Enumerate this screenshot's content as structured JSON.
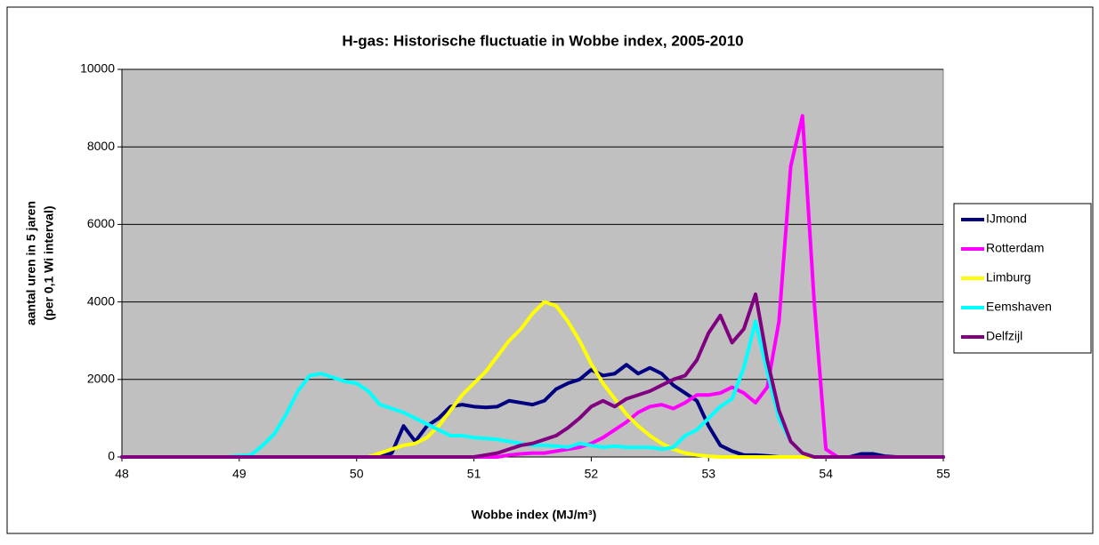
{
  "chart_data": {
    "type": "line",
    "title": "H-gas: Historische fluctuatie in Wobbe index, 2005-2010",
    "xlabel": "Wobbe index (MJ/m³)",
    "ylabel": [
      "aantal uren in 5 jaren",
      "(per 0,1 Wi interval)"
    ],
    "x": [
      48,
      48.1,
      48.2,
      48.3,
      48.4,
      48.5,
      48.6,
      48.7,
      48.8,
      48.9,
      49,
      49.1,
      49.2,
      49.3,
      49.4,
      49.5,
      49.6,
      49.7,
      49.8,
      49.9,
      50,
      50.1,
      50.2,
      50.3,
      50.4,
      50.5,
      50.6,
      50.7,
      50.8,
      50.9,
      51,
      51.1,
      51.2,
      51.3,
      51.4,
      51.5,
      51.6,
      51.7,
      51.8,
      51.9,
      52,
      52.1,
      52.2,
      52.3,
      52.4,
      52.5,
      52.6,
      52.7,
      52.8,
      52.9,
      53,
      53.1,
      53.2,
      53.3,
      53.4,
      53.5,
      53.6,
      53.7,
      53.8,
      53.9,
      54,
      54.1,
      54.2,
      54.3,
      54.4,
      54.5,
      54.6,
      54.7,
      54.8,
      54.9,
      55
    ],
    "series": [
      {
        "name": "IJmond",
        "color": "#000080",
        "values": [
          0,
          0,
          0,
          0,
          0,
          0,
          0,
          0,
          0,
          0,
          0,
          0,
          0,
          0,
          0,
          0,
          0,
          0,
          0,
          0,
          0,
          0,
          0,
          100,
          800,
          400,
          800,
          1000,
          1300,
          1350,
          1300,
          1280,
          1300,
          1450,
          1400,
          1350,
          1450,
          1750,
          1900,
          2000,
          2250,
          2100,
          2150,
          2380,
          2150,
          2300,
          2150,
          1850,
          1650,
          1450,
          800,
          300,
          150,
          50,
          50,
          30,
          0,
          0,
          0,
          0,
          0,
          0,
          0,
          80,
          80,
          20,
          0,
          0,
          0,
          0,
          0
        ]
      },
      {
        "name": "Rotterdam",
        "color": "#ff00ff",
        "values": [
          0,
          0,
          0,
          0,
          0,
          0,
          0,
          0,
          0,
          0,
          0,
          0,
          0,
          0,
          0,
          0,
          0,
          0,
          0,
          0,
          0,
          0,
          0,
          0,
          0,
          0,
          0,
          0,
          0,
          0,
          0,
          0,
          0,
          50,
          80,
          100,
          100,
          150,
          200,
          250,
          350,
          500,
          700,
          900,
          1150,
          1300,
          1350,
          1250,
          1400,
          1600,
          1600,
          1650,
          1800,
          1650,
          1400,
          1800,
          3500,
          7500,
          8800,
          4000,
          200,
          0,
          0,
          0,
          0,
          0,
          0,
          0,
          0,
          0,
          0
        ]
      },
      {
        "name": "Limburg",
        "color": "#ffff00",
        "values": [
          0,
          0,
          0,
          0,
          0,
          0,
          0,
          0,
          0,
          0,
          0,
          0,
          0,
          0,
          0,
          0,
          0,
          0,
          0,
          0,
          0,
          0,
          100,
          200,
          300,
          350,
          500,
          800,
          1200,
          1600,
          1900,
          2200,
          2600,
          3000,
          3300,
          3700,
          4000,
          3900,
          3500,
          3000,
          2400,
          1900,
          1500,
          1100,
          800,
          550,
          350,
          200,
          100,
          50,
          20,
          0,
          0,
          0,
          0,
          0,
          0,
          0,
          0,
          0,
          0,
          0,
          0,
          0,
          0,
          0,
          0,
          0,
          0,
          0,
          0
        ]
      },
      {
        "name": "Eemshaven",
        "color": "#00ffff",
        "values": [
          0,
          0,
          0,
          0,
          0,
          0,
          0,
          0,
          0,
          0,
          30,
          50,
          300,
          600,
          1100,
          1700,
          2100,
          2150,
          2050,
          1950,
          1900,
          1700,
          1350,
          1250,
          1150,
          1000,
          850,
          700,
          550,
          550,
          500,
          480,
          450,
          400,
          350,
          300,
          300,
          280,
          250,
          350,
          300,
          250,
          280,
          250,
          250,
          250,
          200,
          250,
          550,
          700,
          1000,
          1300,
          1500,
          2300,
          3500,
          2200,
          1000,
          400,
          100,
          0,
          0,
          0,
          0,
          0,
          0,
          0,
          0,
          0,
          0,
          0,
          0
        ]
      },
      {
        "name": "Delfzijl",
        "color": "#800080",
        "values": [
          0,
          0,
          0,
          0,
          0,
          0,
          0,
          0,
          0,
          0,
          0,
          0,
          0,
          0,
          0,
          0,
          0,
          0,
          0,
          0,
          0,
          0,
          0,
          0,
          0,
          0,
          0,
          0,
          0,
          0,
          0,
          50,
          100,
          200,
          300,
          350,
          450,
          550,
          750,
          1000,
          1300,
          1450,
          1300,
          1500,
          1600,
          1700,
          1850,
          2000,
          2100,
          2500,
          3200,
          3650,
          2950,
          3300,
          4200,
          2500,
          1200,
          400,
          100,
          0,
          0,
          0,
          0,
          0,
          0,
          0,
          0,
          0,
          0,
          0,
          0
        ]
      }
    ],
    "xlim": [
      48,
      55
    ],
    "xticks": [
      48,
      49,
      50,
      51,
      52,
      53,
      54,
      55
    ],
    "ylim": [
      0,
      10000
    ],
    "yticks": [
      0,
      2000,
      4000,
      6000,
      8000,
      10000
    ],
    "grid": true,
    "legend": "right",
    "plot_background": "#c0c0c0"
  }
}
